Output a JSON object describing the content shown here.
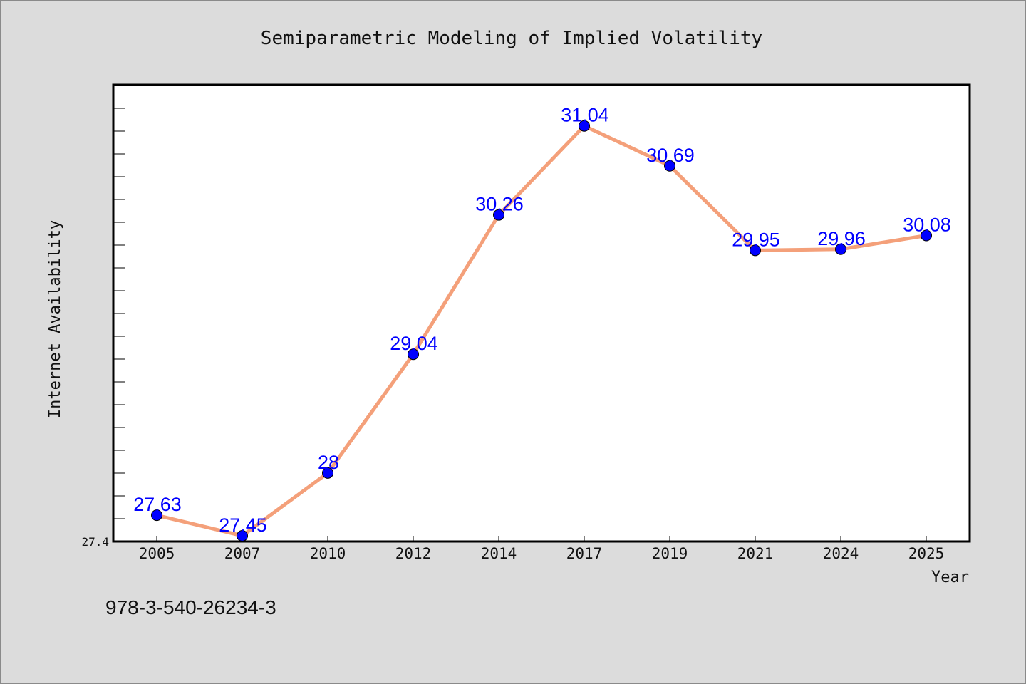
{
  "footer": {
    "text": "978-3-540-26234-3"
  },
  "chart_data": {
    "type": "line",
    "title": "Semiparametric Modeling of Implied Volatility",
    "xlabel": "Year",
    "ylabel": "Internet Availability",
    "categories": [
      "2005",
      "2007",
      "2010",
      "2012",
      "2014",
      "2017",
      "2019",
      "2021",
      "2024",
      "2025"
    ],
    "series": [
      {
        "values": [
          27.63,
          27.45,
          28,
          29.04,
          30.26,
          31.04,
          30.69,
          29.95,
          29.96,
          30.08
        ]
      }
    ],
    "data_labels": [
      "27.63",
      "27.45",
      "28",
      "29.04",
      "30.26",
      "31.04",
      "30.69",
      "29.95",
      "29.96",
      "30.08"
    ],
    "y_tick_labels": [
      "27.4"
    ],
    "ylim": [
      27.4,
      31.4
    ],
    "grid": false,
    "legend": "none",
    "colors": {
      "line": "#f4a07a",
      "marker": "#0000ff",
      "labels": "#0000ff",
      "background": "#dcdcdc",
      "plot_area": "#ffffff"
    }
  }
}
